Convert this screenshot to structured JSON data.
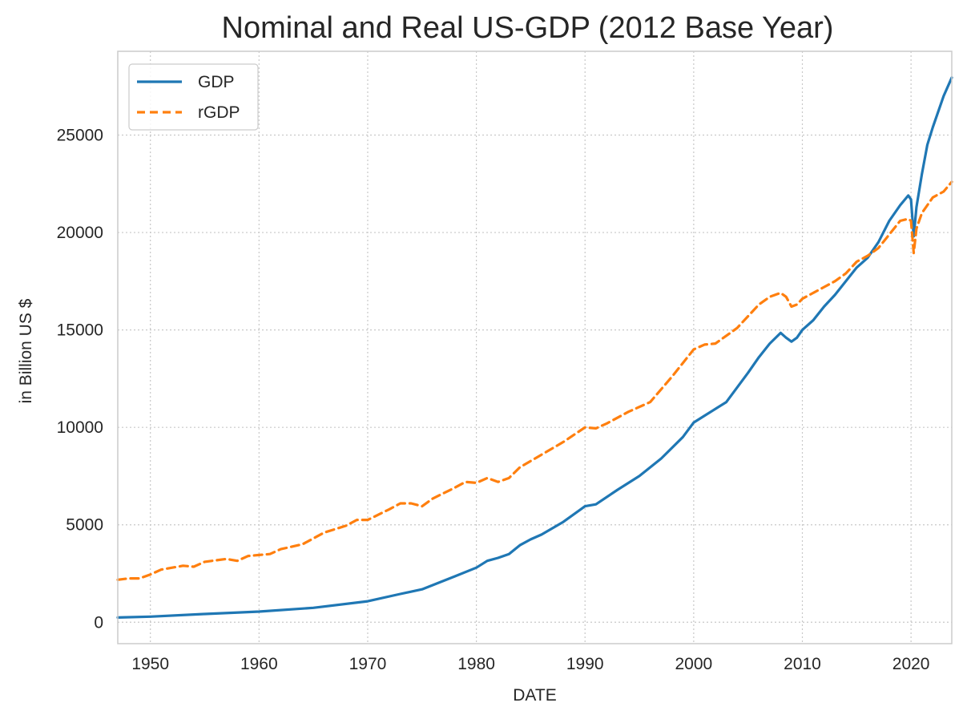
{
  "chart_data": {
    "type": "line",
    "title": "Nominal and Real US-GDP (2012 Base Year)",
    "xlabel": "DATE",
    "ylabel": "in Billion US $",
    "xlim": [
      1947,
      2023.75
    ],
    "ylim": [
      -1100,
      29300
    ],
    "xticks": [
      1950,
      1960,
      1970,
      1980,
      1990,
      2000,
      2010,
      2020
    ],
    "yticks": [
      0,
      5000,
      10000,
      15000,
      20000,
      25000
    ],
    "grid": true,
    "legend_position": "top-left",
    "series": [
      {
        "name": "GDP",
        "color": "#1f77b4",
        "style": "solid",
        "x": [
          1947,
          1950,
          1955,
          1960,
          1965,
          1970,
          1973,
          1975,
          1978,
          1980,
          1981,
          1982,
          1983,
          1984,
          1985,
          1986,
          1988,
          1990,
          1991,
          1993,
          1995,
          1997,
          1999,
          2000,
          2001,
          2003,
          2005,
          2006,
          2007,
          2008,
          2008.5,
          2009,
          2009.5,
          2010,
          2011,
          2012,
          2013,
          2014,
          2015,
          2016,
          2017,
          2018,
          2019,
          2019.75,
          2020.0,
          2020.25,
          2020.5,
          2021,
          2021.5,
          2022,
          2023,
          2023.75
        ],
        "values": [
          243,
          285,
          420,
          545,
          740,
          1075,
          1450,
          1690,
          2350,
          2800,
          3150,
          3300,
          3500,
          3950,
          4250,
          4500,
          5150,
          5950,
          6050,
          6800,
          7500,
          8400,
          9500,
          10250,
          10600,
          11300,
          12800,
          13600,
          14300,
          14850,
          14600,
          14400,
          14600,
          15000,
          15500,
          16200,
          16800,
          17500,
          18200,
          18700,
          19500,
          20600,
          21400,
          21900,
          21700,
          19800,
          21300,
          23000,
          24500,
          25400,
          27000,
          27950
        ]
      },
      {
        "name": "rGDP",
        "color": "#ff7f0e",
        "style": "dashed",
        "x": [
          1947,
          1948,
          1949,
          1950,
          1951,
          1953,
          1954,
          1955,
          1957,
          1958,
          1959,
          1960,
          1961,
          1962,
          1964,
          1966,
          1968,
          1969,
          1970,
          1972,
          1973,
          1974,
          1975,
          1976,
          1978,
          1979,
          1980,
          1981,
          1982,
          1983,
          1984,
          1986,
          1988,
          1990,
          1991,
          1992,
          1994,
          1996,
          1998,
          2000,
          2001,
          2002,
          2004,
          2006,
          2007,
          2008,
          2008.5,
          2009,
          2009.5,
          2010,
          2011,
          2012,
          2013,
          2014,
          2015,
          2016,
          2017,
          2018,
          2019,
          2019.75,
          2020.0,
          2020.25,
          2020.5,
          2021,
          2022,
          2023,
          2023.75
        ],
        "values": [
          2180,
          2250,
          2250,
          2450,
          2700,
          2900,
          2850,
          3100,
          3250,
          3150,
          3400,
          3450,
          3500,
          3750,
          4000,
          4600,
          4950,
          5250,
          5250,
          5800,
          6100,
          6100,
          5950,
          6350,
          6900,
          7200,
          7150,
          7400,
          7200,
          7400,
          7950,
          8600,
          9250,
          10000,
          9950,
          10200,
          10800,
          11300,
          12600,
          14000,
          14250,
          14300,
          15100,
          16300,
          16700,
          16900,
          16700,
          16200,
          16300,
          16600,
          16900,
          17200,
          17500,
          17900,
          18500,
          18800,
          19200,
          19900,
          20600,
          20700,
          20600,
          18950,
          20200,
          21000,
          21800,
          22100,
          22600
        ]
      }
    ]
  }
}
